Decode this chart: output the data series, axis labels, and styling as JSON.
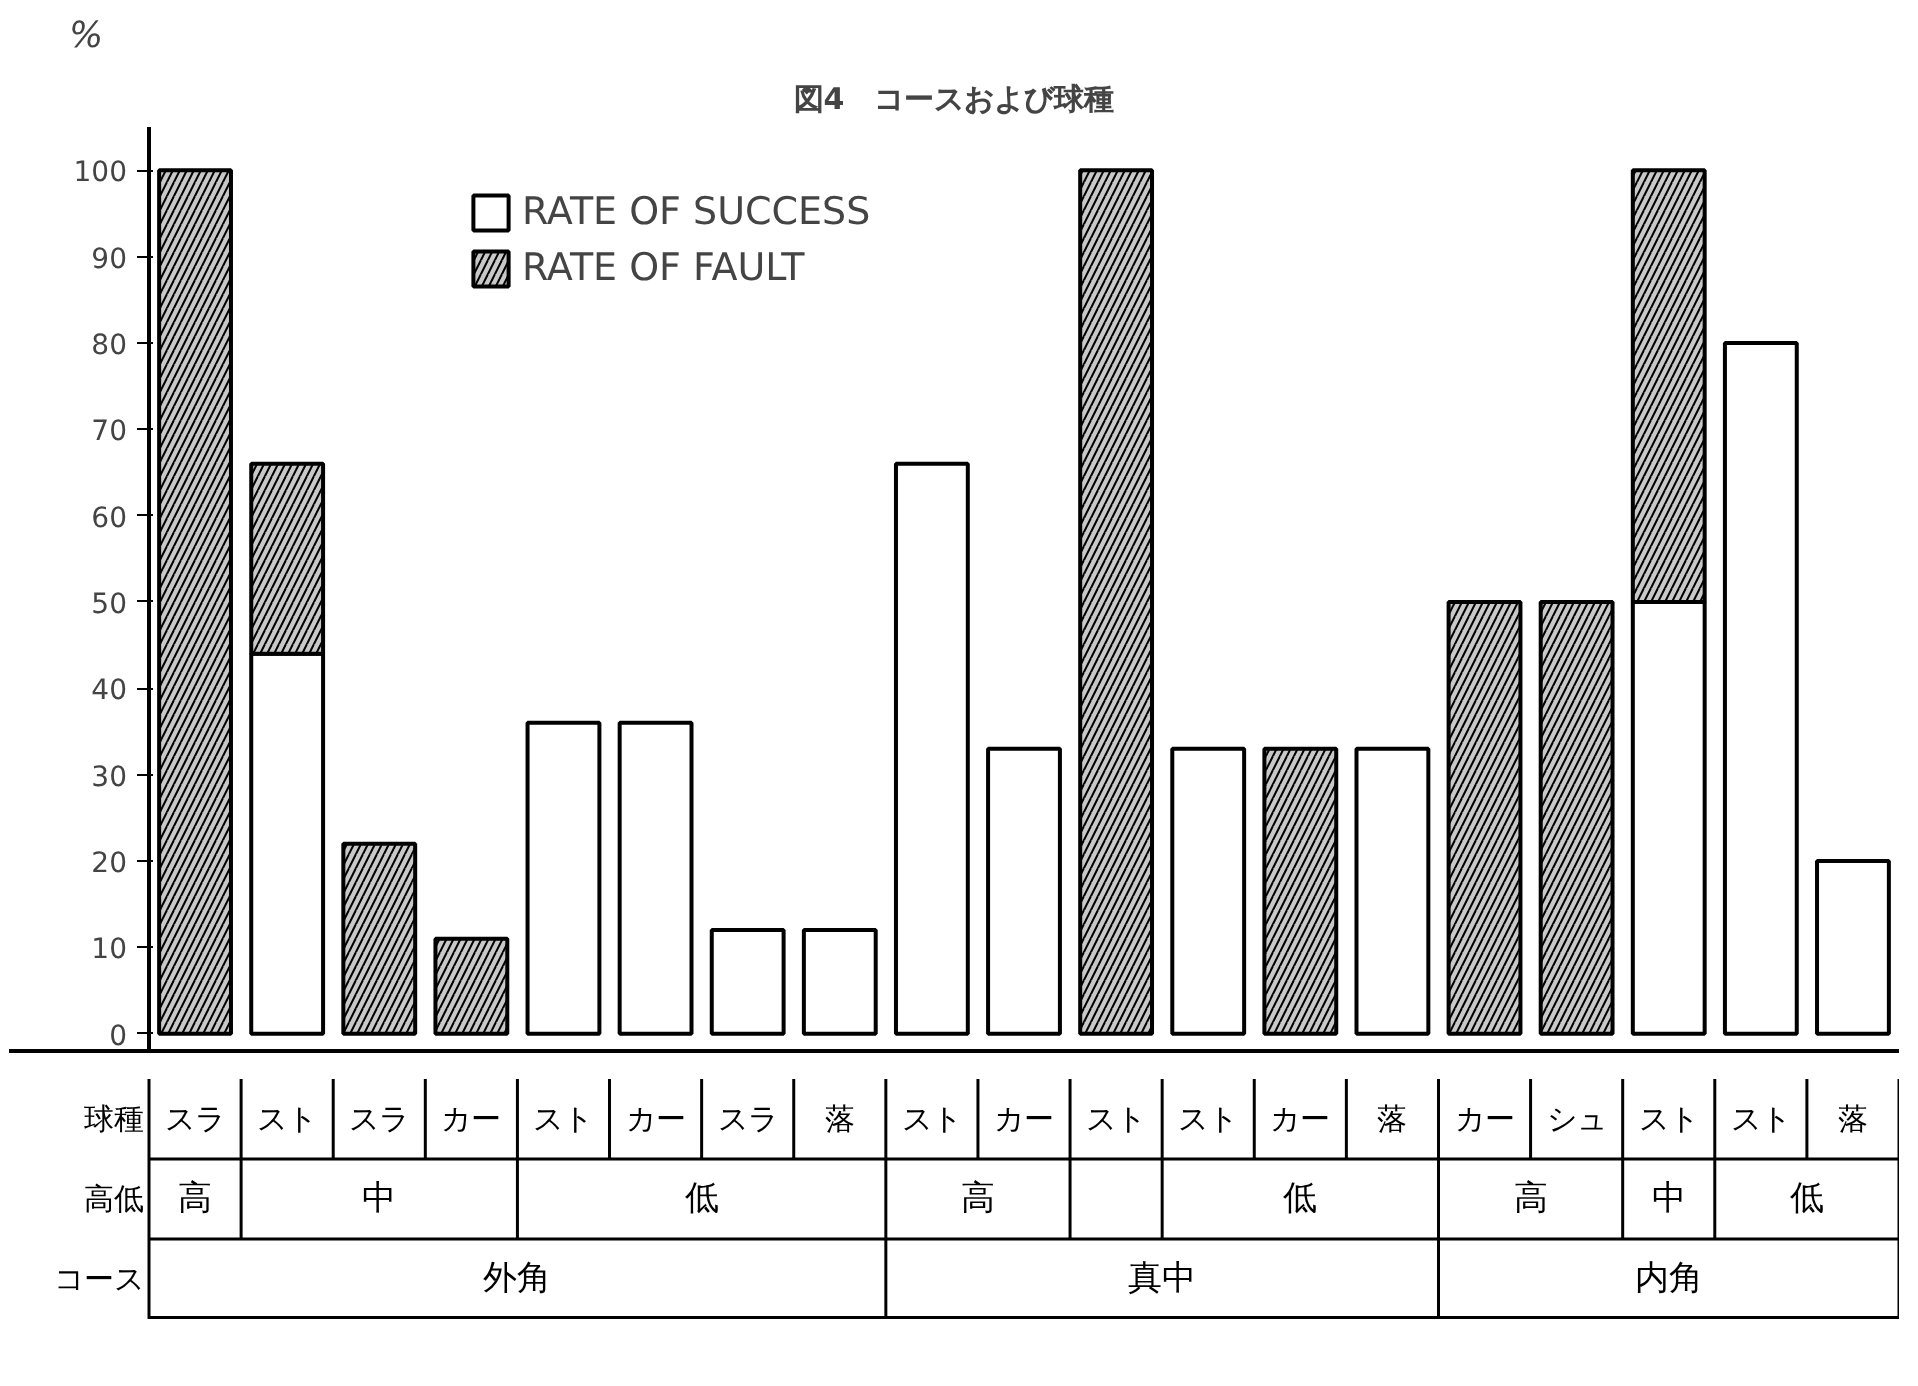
{
  "chart_data": {
    "type": "bar",
    "title": "図4　コースおよび球種",
    "ylabel": "%",
    "stacked": true,
    "categories": [
      "スラ",
      "スト",
      "スラ",
      "カー",
      "スト",
      "カー",
      "スラ",
      "落",
      "スト",
      "カー",
      "スト",
      "スト",
      "カー",
      "落",
      "カー",
      "シュ",
      "スト",
      "スト",
      "落"
    ],
    "series": [
      {
        "name": "RATE OF SUCCESS",
        "color": "#ffffff",
        "values": [
          null,
          44,
          null,
          null,
          36,
          36,
          12,
          12,
          66,
          33,
          null,
          33,
          null,
          33,
          null,
          null,
          50,
          80,
          20
        ]
      },
      {
        "name": "RATE OF FAULT",
        "color": "#c8c8c8",
        "values": [
          100,
          22,
          22,
          11,
          null,
          null,
          null,
          null,
          null,
          null,
          100,
          null,
          33,
          null,
          50,
          50,
          50,
          null,
          null
        ]
      }
    ],
    "ylim": [
      -2,
      105
    ],
    "yticks": [
      0,
      10,
      20,
      30,
      40,
      50,
      60,
      70,
      80,
      90,
      100
    ],
    "grid": false,
    "legend": "top left",
    "annotations": [
      "球種",
      "高低",
      "コース",
      "高",
      "中",
      "低",
      "高",
      "低",
      "高",
      "中",
      "低",
      "外角",
      "真中",
      "内角"
    ]
  }
}
